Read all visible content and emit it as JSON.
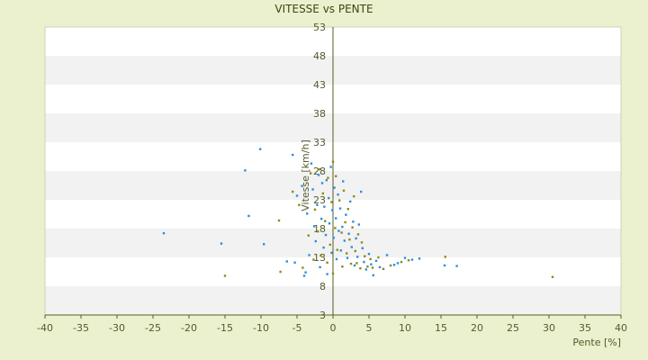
{
  "chart_data": {
    "type": "scatter",
    "title": "VITESSE vs PENTE",
    "xlabel": "Pente [%]",
    "ylabel": "Vitesse [km/h]",
    "xlim": [
      -40,
      40
    ],
    "ylim": [
      3,
      53
    ],
    "xticks": [
      "-40",
      "-35",
      "-30",
      "-25",
      "-20",
      "-15",
      "-10",
      "-5",
      "0",
      "5",
      "10",
      "15",
      "20",
      "25",
      "30",
      "35",
      "40"
    ],
    "yticks": [
      "53",
      "48",
      "43",
      "38",
      "33",
      "28",
      "23",
      "18",
      "13",
      "8",
      "3"
    ],
    "grid": "horizontal alternating bands",
    "legend": "none",
    "colors": {
      "series_a": "#2e8fd8",
      "series_b": "#8c8c14",
      "axis": "#5a5f1e",
      "band": "#f2f2f2",
      "plot_bg": "#ffffff"
    },
    "series": [
      {
        "marker_color": "#2e8fd8",
        "points": [
          [
            -23.5,
            17.2
          ],
          [
            -15.5,
            15.4
          ],
          [
            -12.2,
            28.1
          ],
          [
            -11.7,
            20.2
          ],
          [
            -10.1,
            31.8
          ],
          [
            -9.6,
            15.3
          ],
          [
            -6.4,
            12.3
          ],
          [
            -5.6,
            30.8
          ],
          [
            -5.3,
            12.1
          ],
          [
            -5.0,
            23.7
          ],
          [
            -4.3,
            25.4
          ],
          [
            -4.0,
            9.8
          ],
          [
            -3.8,
            10.4
          ],
          [
            -3.6,
            20.6
          ],
          [
            -3.3,
            13.4
          ],
          [
            -3.0,
            29.3
          ],
          [
            -2.8,
            24.8
          ],
          [
            -2.6,
            18.4
          ],
          [
            -2.4,
            15.8
          ],
          [
            -2.2,
            22.1
          ],
          [
            -2.0,
            27.3
          ],
          [
            -1.8,
            11.3
          ],
          [
            -1.6,
            19.7
          ],
          [
            -1.5,
            25.9
          ],
          [
            -1.3,
            14.7
          ],
          [
            -1.2,
            21.8
          ],
          [
            -1.0,
            16.9
          ],
          [
            -0.9,
            26.4
          ],
          [
            -0.8,
            10.1
          ],
          [
            -0.6,
            23.3
          ],
          [
            -0.5,
            18.9
          ],
          [
            -0.3,
            28.7
          ],
          [
            -0.2,
            13.8
          ],
          [
            -0.1,
            21.2
          ],
          [
            0.1,
            16.4
          ],
          [
            0.2,
            25.1
          ],
          [
            0.4,
            19.8
          ],
          [
            0.5,
            12.7
          ],
          [
            0.7,
            23.9
          ],
          [
            0.8,
            17.6
          ],
          [
            1.0,
            21.5
          ],
          [
            1.1,
            14.2
          ],
          [
            1.3,
            18.3
          ],
          [
            1.4,
            26.2
          ],
          [
            1.6,
            15.9
          ],
          [
            1.8,
            20.4
          ],
          [
            2.0,
            12.9
          ],
          [
            2.2,
            17.1
          ],
          [
            2.4,
            22.7
          ],
          [
            2.6,
            14.8
          ],
          [
            2.8,
            19.2
          ],
          [
            3.0,
            11.6
          ],
          [
            3.2,
            16.3
          ],
          [
            3.4,
            13.1
          ],
          [
            3.6,
            18.7
          ],
          [
            3.9,
            24.4
          ],
          [
            4.1,
            14.6
          ],
          [
            4.3,
            12.2
          ],
          [
            4.6,
            10.9
          ],
          [
            5.0,
            13.6
          ],
          [
            5.3,
            11.8
          ],
          [
            5.6,
            9.9
          ],
          [
            6.0,
            12.4
          ],
          [
            6.5,
            11.3
          ],
          [
            7.5,
            13.4
          ],
          [
            8.5,
            11.7
          ],
          [
            9.0,
            12.0
          ],
          [
            10.0,
            12.9
          ],
          [
            11.0,
            12.6
          ],
          [
            12.0,
            12.8
          ],
          [
            15.5,
            11.6
          ],
          [
            17.2,
            11.5
          ]
        ]
      },
      {
        "marker_color": "#8c8c14",
        "points": [
          [
            -15.0,
            9.8
          ],
          [
            -7.5,
            19.4
          ],
          [
            -7.3,
            10.5
          ],
          [
            -5.6,
            24.4
          ],
          [
            -4.7,
            22.1
          ],
          [
            -4.2,
            11.2
          ],
          [
            -3.4,
            16.8
          ],
          [
            -3.1,
            27.6
          ],
          [
            -2.7,
            12.6
          ],
          [
            -2.5,
            21.3
          ],
          [
            -2.1,
            17.5
          ],
          [
            -1.9,
            28.3
          ],
          [
            -1.7,
            13.3
          ],
          [
            -1.4,
            24.1
          ],
          [
            -1.1,
            19.3
          ],
          [
            -0.8,
            12.1
          ],
          [
            -0.7,
            26.8
          ],
          [
            -0.4,
            15.2
          ],
          [
            -0.2,
            22.6
          ],
          [
            0.0,
            29.6
          ],
          [
            0.0,
            10.2
          ],
          [
            0.3,
            18.1
          ],
          [
            0.4,
            27.1
          ],
          [
            0.6,
            14.3
          ],
          [
            0.9,
            22.9
          ],
          [
            1.2,
            17.3
          ],
          [
            1.3,
            11.4
          ],
          [
            1.5,
            24.6
          ],
          [
            1.7,
            19.1
          ],
          [
            1.9,
            13.7
          ],
          [
            2.1,
            21.4
          ],
          [
            2.3,
            16.1
          ],
          [
            2.5,
            11.9
          ],
          [
            2.7,
            18.2
          ],
          [
            2.9,
            23.6
          ],
          [
            3.1,
            14.1
          ],
          [
            3.3,
            12.0
          ],
          [
            3.5,
            17.0
          ],
          [
            3.8,
            11.1
          ],
          [
            4.0,
            15.6
          ],
          [
            4.4,
            13.2
          ],
          [
            4.8,
            11.4
          ],
          [
            5.2,
            12.7
          ],
          [
            5.5,
            11.2
          ],
          [
            6.3,
            13.0
          ],
          [
            7.0,
            11.0
          ],
          [
            8.0,
            11.6
          ],
          [
            9.5,
            12.2
          ],
          [
            10.5,
            12.5
          ],
          [
            15.6,
            13.1
          ],
          [
            30.5,
            9.6
          ]
        ]
      }
    ]
  }
}
